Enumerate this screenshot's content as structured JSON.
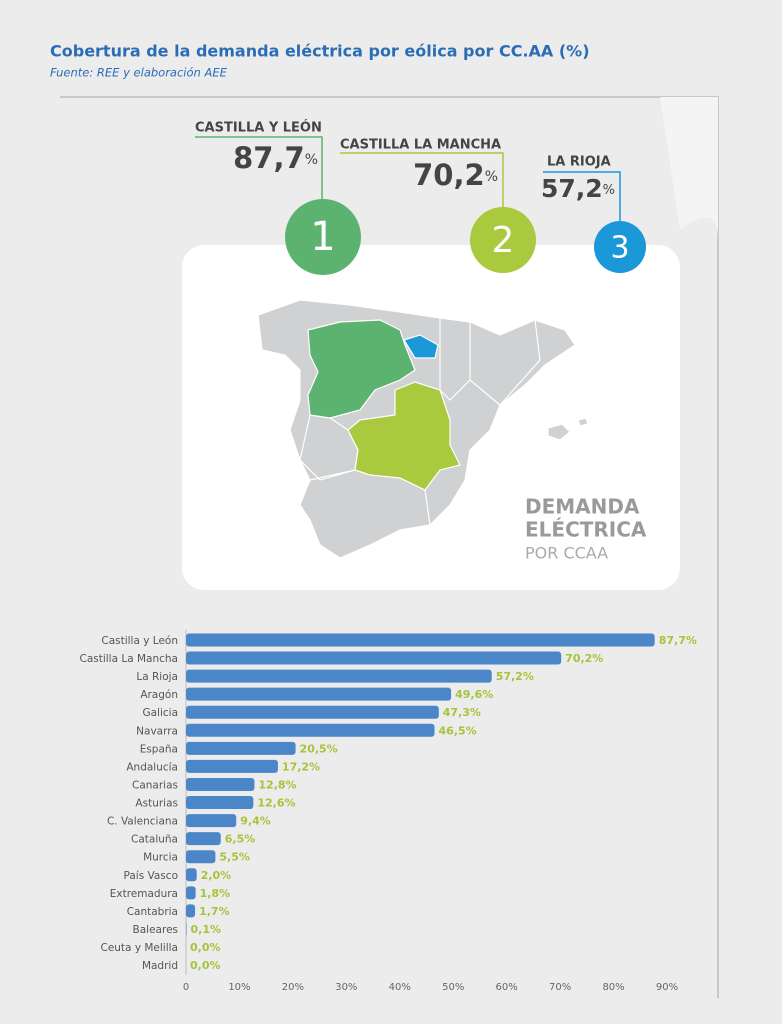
{
  "header": {
    "title": "Cobertura de la demanda eléctrica por eólica por CC.AA (%)",
    "subtitle": "Fuente: REE y elaboración AEE"
  },
  "podium": [
    {
      "name": "CASTILLA Y LEÓN",
      "value": "87,7",
      "unit": "%",
      "rank": "1"
    },
    {
      "name": "CASTILLA LA MANCHA",
      "value": "70,2",
      "unit": "%",
      "rank": "2"
    },
    {
      "name": "LA RIOJA",
      "value": "57,2",
      "unit": "%",
      "rank": "3"
    }
  ],
  "map_label": {
    "line1": "DEMANDA",
    "line2": "ELÉCTRICA",
    "line3": "POR CCAA"
  },
  "chart_data": {
    "type": "bar",
    "orientation": "horizontal",
    "color": "#4a86c8",
    "label_color": "#a6c43a",
    "categories": [
      "Castilla y León",
      "Castilla La Mancha",
      "La Rioja",
      "Aragón",
      "Galicia",
      "Navarra",
      "España",
      "Andalucía",
      "Canarias",
      "Asturias",
      "C. Valenciana",
      "Cataluña",
      "Murcia",
      "País Vasco",
      "Extremadura",
      "Cantabria",
      "Baleares",
      "Ceuta y Melilla",
      "Madrid"
    ],
    "values": [
      87.7,
      70.2,
      57.2,
      49.6,
      47.3,
      46.5,
      20.5,
      17.2,
      12.8,
      12.6,
      9.4,
      6.5,
      5.5,
      2.0,
      1.8,
      1.7,
      0.1,
      0.0,
      0.0
    ],
    "value_labels": [
      "87,7%",
      "70,2%",
      "57,2%",
      "49,6%",
      "47,3%",
      "46,5%",
      "20,5%",
      "17,2%",
      "12,8%",
      "12,6%",
      "9,4%",
      "6,5%",
      "5,5%",
      "2,0%",
      "1,8%",
      "1,7%",
      "0,1%",
      "0,0%",
      "0,0%"
    ],
    "xlim": [
      0,
      90
    ],
    "xticks": [
      0,
      {
        "value": 10,
        "label": "10%"
      },
      {
        "value": 20,
        "label": "20%"
      },
      {
        "value": 30,
        "label": "30%"
      },
      {
        "value": 40,
        "label": "40%"
      },
      {
        "value": 50,
        "label": "50%"
      },
      {
        "value": 60,
        "label": "60%"
      },
      {
        "value": 70,
        "label": "70%"
      },
      {
        "value": 80,
        "label": "80%"
      },
      {
        "value": 90,
        "label": "90%"
      }
    ],
    "grid": false
  }
}
